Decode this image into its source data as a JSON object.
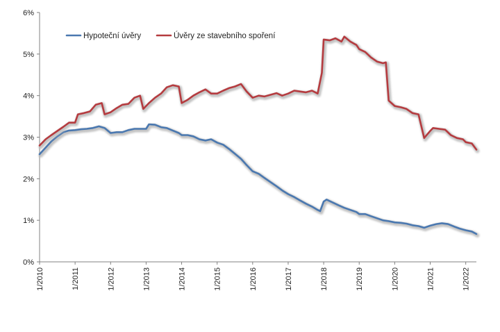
{
  "colors": {
    "mortgage": "#4a78b0",
    "savings": "#b53b3f",
    "shadow": "#b9b9b9",
    "axis": "#808080"
  },
  "chart_data": {
    "type": "line",
    "title": "",
    "xlabel": "",
    "ylabel": "",
    "ylim": [
      0,
      6
    ],
    "xlim": [
      2010.0,
      2022.3
    ],
    "grid": false,
    "legend_placement": "top-left",
    "y_ticks": [
      {
        "value": 0,
        "label": "0%"
      },
      {
        "value": 1,
        "label": "1%"
      },
      {
        "value": 2,
        "label": "2%"
      },
      {
        "value": 3,
        "label": "3%"
      },
      {
        "value": 4,
        "label": "4%"
      },
      {
        "value": 5,
        "label": "5%"
      },
      {
        "value": 6,
        "label": "6%"
      }
    ],
    "x_ticks": [
      {
        "value": 2010,
        "label": "1/2010"
      },
      {
        "value": 2011,
        "label": "1/2011"
      },
      {
        "value": 2012,
        "label": "1/2012"
      },
      {
        "value": 2013,
        "label": "1/2013"
      },
      {
        "value": 2014,
        "label": "1/2014"
      },
      {
        "value": 2015,
        "label": "1/2015"
      },
      {
        "value": 2016,
        "label": "1/2016"
      },
      {
        "value": 2017,
        "label": "1/2017"
      },
      {
        "value": 2018,
        "label": "1/2018"
      },
      {
        "value": 2019,
        "label": "1/2019"
      },
      {
        "value": 2020,
        "label": "1/2020"
      },
      {
        "value": 2021,
        "label": "1/2021"
      },
      {
        "value": 2022,
        "label": "1/2022"
      }
    ],
    "series": [
      {
        "name": "Hypoteční úvěry",
        "color_key": "mortgage",
        "points": [
          [
            2010.0,
            2.59
          ],
          [
            2010.17,
            2.75
          ],
          [
            2010.33,
            2.9
          ],
          [
            2010.5,
            3.02
          ],
          [
            2010.67,
            3.12
          ],
          [
            2010.83,
            3.16
          ],
          [
            2011.0,
            3.17
          ],
          [
            2011.17,
            3.19
          ],
          [
            2011.33,
            3.2
          ],
          [
            2011.5,
            3.22
          ],
          [
            2011.67,
            3.26
          ],
          [
            2011.83,
            3.22
          ],
          [
            2012.0,
            3.1
          ],
          [
            2012.17,
            3.12
          ],
          [
            2012.33,
            3.12
          ],
          [
            2012.5,
            3.17
          ],
          [
            2012.67,
            3.2
          ],
          [
            2012.83,
            3.2
          ],
          [
            2013.0,
            3.2
          ],
          [
            2013.08,
            3.31
          ],
          [
            2013.25,
            3.3
          ],
          [
            2013.42,
            3.24
          ],
          [
            2013.58,
            3.22
          ],
          [
            2013.75,
            3.16
          ],
          [
            2013.92,
            3.1
          ],
          [
            2014.0,
            3.05
          ],
          [
            2014.17,
            3.05
          ],
          [
            2014.33,
            3.02
          ],
          [
            2014.5,
            2.95
          ],
          [
            2014.67,
            2.92
          ],
          [
            2014.83,
            2.95
          ],
          [
            2015.0,
            2.87
          ],
          [
            2015.17,
            2.82
          ],
          [
            2015.33,
            2.72
          ],
          [
            2015.5,
            2.6
          ],
          [
            2015.67,
            2.48
          ],
          [
            2015.83,
            2.33
          ],
          [
            2016.0,
            2.18
          ],
          [
            2016.17,
            2.12
          ],
          [
            2016.33,
            2.02
          ],
          [
            2016.5,
            1.92
          ],
          [
            2016.67,
            1.82
          ],
          [
            2016.83,
            1.72
          ],
          [
            2017.0,
            1.63
          ],
          [
            2017.17,
            1.56
          ],
          [
            2017.33,
            1.48
          ],
          [
            2017.5,
            1.4
          ],
          [
            2017.67,
            1.33
          ],
          [
            2017.83,
            1.25
          ],
          [
            2017.9,
            1.22
          ],
          [
            2018.0,
            1.45
          ],
          [
            2018.08,
            1.5
          ],
          [
            2018.25,
            1.43
          ],
          [
            2018.42,
            1.36
          ],
          [
            2018.58,
            1.3
          ],
          [
            2018.75,
            1.25
          ],
          [
            2018.92,
            1.2
          ],
          [
            2019.0,
            1.15
          ],
          [
            2019.17,
            1.15
          ],
          [
            2019.33,
            1.1
          ],
          [
            2019.5,
            1.05
          ],
          [
            2019.67,
            1.0
          ],
          [
            2019.83,
            0.98
          ],
          [
            2020.0,
            0.95
          ],
          [
            2020.17,
            0.94
          ],
          [
            2020.33,
            0.92
          ],
          [
            2020.5,
            0.88
          ],
          [
            2020.67,
            0.86
          ],
          [
            2020.83,
            0.82
          ],
          [
            2021.0,
            0.87
          ],
          [
            2021.17,
            0.91
          ],
          [
            2021.33,
            0.93
          ],
          [
            2021.5,
            0.91
          ],
          [
            2021.67,
            0.85
          ],
          [
            2021.83,
            0.8
          ],
          [
            2022.0,
            0.76
          ],
          [
            2022.17,
            0.73
          ],
          [
            2022.3,
            0.67
          ]
        ]
      },
      {
        "name": "Úvěry ze stavebního spoření",
        "color_key": "savings",
        "points": [
          [
            2010.0,
            2.8
          ],
          [
            2010.17,
            2.95
          ],
          [
            2010.33,
            3.05
          ],
          [
            2010.5,
            3.15
          ],
          [
            2010.67,
            3.25
          ],
          [
            2010.83,
            3.35
          ],
          [
            2011.0,
            3.35
          ],
          [
            2011.08,
            3.55
          ],
          [
            2011.25,
            3.58
          ],
          [
            2011.42,
            3.62
          ],
          [
            2011.58,
            3.78
          ],
          [
            2011.75,
            3.82
          ],
          [
            2011.83,
            3.55
          ],
          [
            2012.0,
            3.6
          ],
          [
            2012.17,
            3.7
          ],
          [
            2012.33,
            3.78
          ],
          [
            2012.5,
            3.8
          ],
          [
            2012.67,
            3.95
          ],
          [
            2012.83,
            4.0
          ],
          [
            2012.92,
            3.68
          ],
          [
            2013.08,
            3.82
          ],
          [
            2013.25,
            3.95
          ],
          [
            2013.42,
            4.05
          ],
          [
            2013.58,
            4.2
          ],
          [
            2013.75,
            4.25
          ],
          [
            2013.92,
            4.22
          ],
          [
            2014.0,
            3.82
          ],
          [
            2014.17,
            3.9
          ],
          [
            2014.33,
            4.0
          ],
          [
            2014.5,
            4.08
          ],
          [
            2014.67,
            4.15
          ],
          [
            2014.83,
            4.05
          ],
          [
            2015.0,
            4.05
          ],
          [
            2015.17,
            4.12
          ],
          [
            2015.33,
            4.18
          ],
          [
            2015.5,
            4.22
          ],
          [
            2015.67,
            4.28
          ],
          [
            2015.83,
            4.1
          ],
          [
            2016.0,
            3.95
          ],
          [
            2016.17,
            4.0
          ],
          [
            2016.33,
            3.98
          ],
          [
            2016.5,
            4.02
          ],
          [
            2016.67,
            4.06
          ],
          [
            2016.83,
            4.0
          ],
          [
            2017.0,
            4.05
          ],
          [
            2017.17,
            4.12
          ],
          [
            2017.33,
            4.1
          ],
          [
            2017.5,
            4.08
          ],
          [
            2017.67,
            4.12
          ],
          [
            2017.83,
            4.05
          ],
          [
            2017.95,
            4.55
          ],
          [
            2018.0,
            5.35
          ],
          [
            2018.17,
            5.33
          ],
          [
            2018.33,
            5.38
          ],
          [
            2018.5,
            5.3
          ],
          [
            2018.58,
            5.42
          ],
          [
            2018.75,
            5.3
          ],
          [
            2018.92,
            5.22
          ],
          [
            2019.0,
            5.12
          ],
          [
            2019.17,
            5.05
          ],
          [
            2019.33,
            4.92
          ],
          [
            2019.5,
            4.82
          ],
          [
            2019.67,
            4.78
          ],
          [
            2019.75,
            4.8
          ],
          [
            2019.83,
            3.88
          ],
          [
            2020.0,
            3.75
          ],
          [
            2020.17,
            3.72
          ],
          [
            2020.33,
            3.68
          ],
          [
            2020.5,
            3.58
          ],
          [
            2020.67,
            3.55
          ],
          [
            2020.83,
            2.98
          ],
          [
            2021.0,
            3.15
          ],
          [
            2021.08,
            3.22
          ],
          [
            2021.25,
            3.2
          ],
          [
            2021.42,
            3.18
          ],
          [
            2021.58,
            3.05
          ],
          [
            2021.75,
            2.98
          ],
          [
            2021.92,
            2.95
          ],
          [
            2022.0,
            2.88
          ],
          [
            2022.17,
            2.85
          ],
          [
            2022.3,
            2.7
          ]
        ]
      }
    ]
  }
}
